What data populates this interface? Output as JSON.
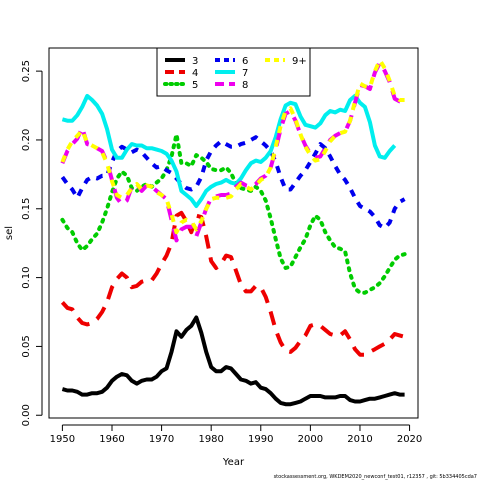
{
  "chart_data": {
    "type": "line",
    "xlabel": "Year",
    "ylabel": "sel",
    "xlim": [
      1947.3,
      2021.7
    ],
    "ylim": [
      -0.002,
      0.2668
    ],
    "x_ticks": [
      1950,
      1960,
      1970,
      1980,
      1990,
      2000,
      2010,
      2020
    ],
    "y_ticks": [
      0.0,
      0.05,
      0.1,
      0.15,
      0.2,
      0.25
    ],
    "y_tick_labels": [
      "0.00",
      "0.05",
      "0.10",
      "0.15",
      "0.20",
      "0.25"
    ],
    "grid": false,
    "legend": {
      "placement": "top-center",
      "columns": 3
    },
    "footer": "stockassessment.org, WKDEM2020_newconf_test01, r12357 , git: 5b334405cda7",
    "series": [
      {
        "name": "3",
        "color": "#000000",
        "dash": "solid",
        "x": [
          1950,
          1951,
          1952,
          1953,
          1954,
          1955,
          1956,
          1957,
          1958,
          1959,
          1960,
          1961,
          1962,
          1963,
          1964,
          1965,
          1966,
          1967,
          1968,
          1969,
          1970,
          1971,
          1972,
          1973,
          1974,
          1975,
          1976,
          1977,
          1978,
          1979,
          1980,
          1981,
          1982,
          1983,
          1984,
          1985,
          1986,
          1987,
          1988,
          1989,
          1990,
          1991,
          1992,
          1993,
          1994,
          1995,
          1996,
          1997,
          1998,
          1999,
          2000,
          2001,
          2002,
          2003,
          2004,
          2005,
          2006,
          2007,
          2008,
          2009,
          2010,
          2011,
          2012,
          2013,
          2014,
          2015,
          2016,
          2017,
          2018,
          2019
        ],
        "y": [
          0.019,
          0.018,
          0.018,
          0.017,
          0.015,
          0.015,
          0.016,
          0.016,
          0.017,
          0.02,
          0.025,
          0.028,
          0.03,
          0.029,
          0.025,
          0.023,
          0.025,
          0.026,
          0.026,
          0.028,
          0.032,
          0.034,
          0.046,
          0.061,
          0.057,
          0.062,
          0.065,
          0.071,
          0.06,
          0.046,
          0.035,
          0.032,
          0.032,
          0.035,
          0.034,
          0.03,
          0.026,
          0.025,
          0.023,
          0.024,
          0.02,
          0.019,
          0.016,
          0.012,
          0.009,
          0.008,
          0.008,
          0.009,
          0.01,
          0.012,
          0.014,
          0.014,
          0.014,
          0.013,
          0.013,
          0.013,
          0.014,
          0.014,
          0.011,
          0.01,
          0.01,
          0.011,
          0.012,
          0.012,
          0.013,
          0.014,
          0.015,
          0.016,
          0.015,
          0.015
        ]
      },
      {
        "name": "4",
        "color": "#ee0000",
        "dash": "long",
        "x": [
          1950,
          1951,
          1952,
          1953,
          1954,
          1955,
          1956,
          1957,
          1958,
          1959,
          1960,
          1961,
          1962,
          1963,
          1964,
          1965,
          1966,
          1967,
          1968,
          1969,
          1970,
          1971,
          1972,
          1973,
          1974,
          1975,
          1976,
          1977,
          1978,
          1979,
          1980,
          1981,
          1982,
          1983,
          1984,
          1985,
          1986,
          1987,
          1988,
          1989,
          1990,
          1991,
          1992,
          1993,
          1994,
          1995,
          1996,
          1997,
          1998,
          1999,
          2000,
          2001,
          2002,
          2003,
          2004,
          2005,
          2006,
          2007,
          2008,
          2009,
          2010,
          2011,
          2012,
          2013,
          2014,
          2015,
          2016,
          2017,
          2018,
          2019
        ],
        "y": [
          0.082,
          0.078,
          0.077,
          0.071,
          0.067,
          0.066,
          0.067,
          0.07,
          0.075,
          0.082,
          0.093,
          0.099,
          0.103,
          0.1,
          0.093,
          0.094,
          0.097,
          0.098,
          0.098,
          0.103,
          0.11,
          0.116,
          0.125,
          0.145,
          0.147,
          0.141,
          0.133,
          0.145,
          0.144,
          0.13,
          0.112,
          0.107,
          0.11,
          0.116,
          0.115,
          0.105,
          0.095,
          0.09,
          0.09,
          0.094,
          0.093,
          0.086,
          0.075,
          0.062,
          0.053,
          0.047,
          0.046,
          0.049,
          0.054,
          0.058,
          0.065,
          0.066,
          0.065,
          0.062,
          0.059,
          0.058,
          0.058,
          0.061,
          0.055,
          0.048,
          0.044,
          0.044,
          0.046,
          0.048,
          0.05,
          0.052,
          0.055,
          0.059,
          0.058,
          0.057
        ]
      },
      {
        "name": "5",
        "color": "#00cc00",
        "dash": "dot",
        "x": [
          1950,
          1951,
          1952,
          1953,
          1954,
          1955,
          1956,
          1957,
          1958,
          1959,
          1960,
          1961,
          1962,
          1963,
          1964,
          1965,
          1966,
          1967,
          1968,
          1969,
          1970,
          1971,
          1972,
          1973,
          1974,
          1975,
          1976,
          1977,
          1978,
          1979,
          1980,
          1981,
          1982,
          1983,
          1984,
          1985,
          1986,
          1987,
          1988,
          1989,
          1990,
          1991,
          1992,
          1993,
          1994,
          1995,
          1996,
          1997,
          1998,
          1999,
          2000,
          2001,
          2002,
          2003,
          2004,
          2005,
          2006,
          2007,
          2008,
          2009,
          2010,
          2011,
          2012,
          2013,
          2014,
          2015,
          2016,
          2017,
          2018,
          2019
        ],
        "y": [
          0.142,
          0.136,
          0.133,
          0.125,
          0.12,
          0.123,
          0.128,
          0.132,
          0.14,
          0.15,
          0.162,
          0.172,
          0.177,
          0.174,
          0.165,
          0.163,
          0.166,
          0.168,
          0.166,
          0.169,
          0.172,
          0.178,
          0.188,
          0.204,
          0.183,
          0.183,
          0.181,
          0.189,
          0.187,
          0.184,
          0.179,
          0.178,
          0.178,
          0.18,
          0.176,
          0.168,
          0.165,
          0.164,
          0.163,
          0.166,
          0.163,
          0.156,
          0.143,
          0.128,
          0.114,
          0.107,
          0.108,
          0.115,
          0.122,
          0.128,
          0.138,
          0.145,
          0.142,
          0.133,
          0.127,
          0.122,
          0.121,
          0.119,
          0.103,
          0.092,
          0.089,
          0.089,
          0.091,
          0.093,
          0.096,
          0.101,
          0.107,
          0.113,
          0.116,
          0.117
        ]
      },
      {
        "name": "6",
        "color": "#0000ee",
        "dash": "dash",
        "x": [
          1950,
          1951,
          1952,
          1953,
          1954,
          1955,
          1956,
          1957,
          1958,
          1959,
          1960,
          1961,
          1962,
          1963,
          1964,
          1965,
          1966,
          1967,
          1968,
          1969,
          1970,
          1971,
          1972,
          1973,
          1974,
          1975,
          1976,
          1977,
          1978,
          1979,
          1980,
          1981,
          1982,
          1983,
          1984,
          1985,
          1986,
          1987,
          1988,
          1989,
          1990,
          1991,
          1992,
          1993,
          1994,
          1995,
          1996,
          1997,
          1998,
          1999,
          2000,
          2001,
          2002,
          2003,
          2004,
          2005,
          2006,
          2007,
          2008,
          2009,
          2010,
          2011,
          2012,
          2013,
          2014,
          2015,
          2016,
          2017,
          2018,
          2019
        ],
        "y": [
          0.173,
          0.168,
          0.164,
          0.158,
          0.165,
          0.171,
          0.173,
          0.172,
          0.174,
          0.174,
          0.184,
          0.192,
          0.195,
          0.193,
          0.191,
          0.193,
          0.191,
          0.187,
          0.183,
          0.18,
          0.181,
          0.178,
          0.176,
          0.172,
          0.168,
          0.165,
          0.164,
          0.166,
          0.173,
          0.185,
          0.192,
          0.196,
          0.199,
          0.197,
          0.195,
          0.195,
          0.197,
          0.198,
          0.2,
          0.202,
          0.199,
          0.196,
          0.192,
          0.184,
          0.173,
          0.164,
          0.164,
          0.169,
          0.174,
          0.178,
          0.184,
          0.19,
          0.197,
          0.194,
          0.188,
          0.181,
          0.175,
          0.171,
          0.165,
          0.158,
          0.152,
          0.15,
          0.148,
          0.144,
          0.138,
          0.136,
          0.14,
          0.15,
          0.155,
          0.157
        ]
      },
      {
        "name": "7",
        "color": "#00eeee",
        "dash": "solid",
        "x": [
          1950,
          1951,
          1952,
          1953,
          1954,
          1955,
          1956,
          1957,
          1958,
          1959,
          1960,
          1961,
          1962,
          1963,
          1964,
          1965,
          1966,
          1967,
          1968,
          1969,
          1970,
          1971,
          1972,
          1973,
          1974,
          1975,
          1976,
          1977,
          1978,
          1979,
          1980,
          1981,
          1982,
          1983,
          1984,
          1985,
          1986,
          1987,
          1988,
          1989,
          1990,
          1991,
          1992,
          1993,
          1994,
          1995,
          1996,
          1997,
          1998,
          1999,
          2000,
          2001,
          2002,
          2003,
          2004,
          2005,
          2006,
          2007,
          2008,
          2009,
          2010,
          2011,
          2012,
          2013,
          2014,
          2015,
          2016,
          2017
        ],
        "y": [
          0.215,
          0.214,
          0.214,
          0.218,
          0.224,
          0.232,
          0.229,
          0.225,
          0.219,
          0.208,
          0.193,
          0.187,
          0.187,
          0.193,
          0.197,
          0.196,
          0.196,
          0.194,
          0.194,
          0.193,
          0.192,
          0.19,
          0.185,
          0.177,
          0.163,
          0.16,
          0.157,
          0.152,
          0.157,
          0.163,
          0.166,
          0.168,
          0.169,
          0.171,
          0.169,
          0.168,
          0.172,
          0.178,
          0.183,
          0.185,
          0.184,
          0.187,
          0.192,
          0.202,
          0.215,
          0.225,
          0.227,
          0.226,
          0.217,
          0.211,
          0.21,
          0.209,
          0.212,
          0.218,
          0.221,
          0.22,
          0.222,
          0.221,
          0.229,
          0.232,
          0.227,
          0.224,
          0.213,
          0.196,
          0.188,
          0.187,
          0.192,
          0.196
        ]
      },
      {
        "name": "8",
        "color": "#ee00ee",
        "dash": "long",
        "x": [
          1950,
          1951,
          1952,
          1953,
          1954,
          1955,
          1956,
          1957,
          1958,
          1959,
          1960,
          1961,
          1962,
          1963,
          1964,
          1965,
          1966,
          1967,
          1968,
          1969,
          1970,
          1971,
          1972,
          1973,
          1974,
          1975,
          1976,
          1977,
          1978,
          1979,
          1980,
          1981,
          1982,
          1983,
          1984,
          1985,
          1986,
          1987,
          1988,
          1989,
          1990,
          1991,
          1992,
          1993,
          1994,
          1995,
          1996,
          1997,
          1998,
          1999,
          2000,
          2001,
          2002,
          2003,
          2004,
          2005,
          2006,
          2007,
          2008,
          2009,
          2010,
          2011,
          2012,
          2013,
          2014,
          2015,
          2016,
          2017,
          2018,
          2019
        ],
        "y": [
          0.183,
          0.192,
          0.197,
          0.201,
          0.209,
          0.197,
          0.196,
          0.194,
          0.192,
          0.184,
          0.171,
          0.158,
          0.153,
          0.156,
          0.166,
          0.168,
          0.163,
          0.167,
          0.166,
          0.163,
          0.16,
          0.157,
          0.142,
          0.127,
          0.135,
          0.137,
          0.137,
          0.13,
          0.14,
          0.15,
          0.158,
          0.159,
          0.16,
          0.16,
          0.161,
          0.166,
          0.169,
          0.167,
          0.166,
          0.168,
          0.172,
          0.174,
          0.18,
          0.193,
          0.208,
          0.219,
          0.221,
          0.214,
          0.204,
          0.196,
          0.19,
          0.187,
          0.188,
          0.194,
          0.2,
          0.203,
          0.205,
          0.206,
          0.214,
          0.227,
          0.24,
          0.239,
          0.237,
          0.249,
          0.256,
          0.25,
          0.242,
          0.23,
          0.228,
          0.228
        ]
      },
      {
        "name": "9+",
        "color": "#ffff00",
        "dash": "dash",
        "x": [
          1950,
          1951,
          1952,
          1953,
          1954,
          1955,
          1956,
          1957,
          1958,
          1959,
          1960,
          1961,
          1962,
          1963,
          1964,
          1965,
          1966,
          1967,
          1968,
          1969,
          1970,
          1971,
          1972,
          1973,
          1974,
          1975,
          1976,
          1977,
          1978,
          1979,
          1980,
          1981,
          1982,
          1983,
          1984,
          1985,
          1986,
          1987,
          1988,
          1989,
          1990,
          1991,
          1992,
          1993,
          1994,
          1995,
          1996,
          1997,
          1998,
          1999,
          2000,
          2001,
          2002,
          2003,
          2004,
          2005,
          2006,
          2007,
          2008,
          2009,
          2010,
          2011,
          2012,
          2013,
          2014,
          2015,
          2016,
          2017,
          2018,
          2019
        ],
        "y": [
          0.184,
          0.193,
          0.199,
          0.203,
          0.207,
          0.198,
          0.196,
          0.194,
          0.191,
          0.183,
          0.17,
          0.16,
          0.158,
          0.16,
          0.165,
          0.168,
          0.164,
          0.167,
          0.166,
          0.162,
          0.16,
          0.157,
          0.146,
          0.133,
          0.14,
          0.142,
          0.141,
          0.135,
          0.141,
          0.15,
          0.157,
          0.158,
          0.158,
          0.158,
          0.159,
          0.164,
          0.168,
          0.166,
          0.164,
          0.167,
          0.171,
          0.173,
          0.18,
          0.195,
          0.21,
          0.221,
          0.223,
          0.215,
          0.204,
          0.195,
          0.189,
          0.185,
          0.186,
          0.192,
          0.199,
          0.203,
          0.205,
          0.206,
          0.214,
          0.228,
          0.241,
          0.239,
          0.238,
          0.25,
          0.258,
          0.252,
          0.243,
          0.232,
          0.229,
          0.229
        ]
      }
    ]
  }
}
